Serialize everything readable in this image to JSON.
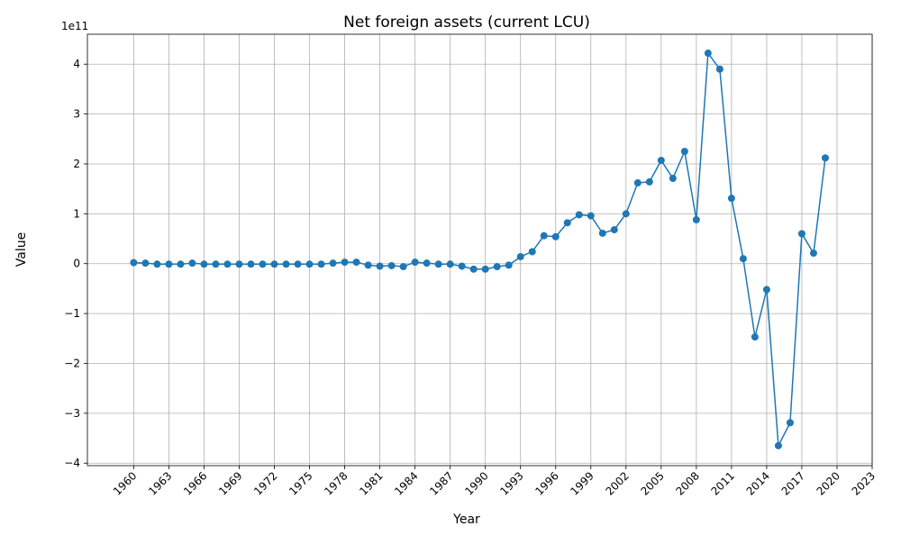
{
  "chart_data": {
    "type": "line",
    "title": "Net foreign assets (current LCU)",
    "xlabel": "Year",
    "ylabel": "Value",
    "y_offset_text": "1e11",
    "y_scale_exponent": 11,
    "xlim": [
      1956.05,
      2023
    ],
    "ylim": [
      -405000000000.0,
      460000000000.0
    ],
    "x_ticks": [
      1960,
      1963,
      1966,
      1969,
      1972,
      1975,
      1978,
      1981,
      1984,
      1987,
      1990,
      1993,
      1996,
      1999,
      2002,
      2005,
      2008,
      2011,
      2014,
      2017,
      2020,
      2023
    ],
    "y_ticks": [
      -400000000000.0,
      -300000000000.0,
      -200000000000.0,
      -100000000000.0,
      0,
      100000000000.0,
      200000000000.0,
      300000000000.0,
      400000000000.0
    ],
    "y_tick_labels": [
      "−4",
      "−3",
      "−2",
      "−1",
      "0",
      "1",
      "2",
      "3",
      "4"
    ],
    "grid": true,
    "color": "#1f77b4",
    "marker": "circle",
    "x": [
      1960,
      1961,
      1962,
      1963,
      1964,
      1965,
      1966,
      1967,
      1968,
      1969,
      1970,
      1971,
      1972,
      1973,
      1974,
      1975,
      1976,
      1977,
      1978,
      1979,
      1980,
      1981,
      1982,
      1983,
      1984,
      1985,
      1986,
      1987,
      1988,
      1989,
      1990,
      1991,
      1992,
      1993,
      1994,
      1995,
      1996,
      1997,
      1998,
      1999,
      2000,
      2001,
      2002,
      2003,
      2004,
      2005,
      2006,
      2007,
      2008,
      2009,
      2010,
      2011,
      2012,
      2013,
      2014,
      2015,
      2016,
      2017,
      2018,
      2019
    ],
    "y": [
      2000000000.0,
      1000000000.0,
      -1000000000.0,
      -1000000000.0,
      -1000000000.0,
      1000000000.0,
      -1000000000.0,
      -1000000000.0,
      -1000000000.0,
      -1000000000.0,
      -1000000000.0,
      -1000000000.0,
      -1000000000.0,
      -1000000000.0,
      -1000000000.0,
      -1000000000.0,
      -1000000000.0,
      1000000000.0,
      3000000000.0,
      3000000000.0,
      -3000000000.0,
      -5000000000.0,
      -4000000000.0,
      -6000000000.0,
      3000000000.0,
      1000000000.0,
      -1000000000.0,
      -1000000000.0,
      -5000000000.0,
      -11000000000.0,
      -11000000000.0,
      -6000000000.0,
      -3000000000.0,
      14000000000.0,
      24000000000.0,
      56000000000.0,
      54000000000.0,
      82000000000.0,
      98000000000.0,
      96000000000.0,
      61000000000.0,
      68000000000.0,
      100000000000.0,
      162000000000.0,
      164000000000.0,
      207000000000.0,
      171000000000.0,
      225000000000.0,
      88000000000.0,
      422000000000.0,
      390000000000.0,
      131000000000.0,
      10000000000.0,
      -147000000000.0,
      -52000000000.0,
      -365000000000.0,
      -319000000000.0,
      60000000000.0,
      21000000000.0,
      212000000000.0
    ]
  }
}
